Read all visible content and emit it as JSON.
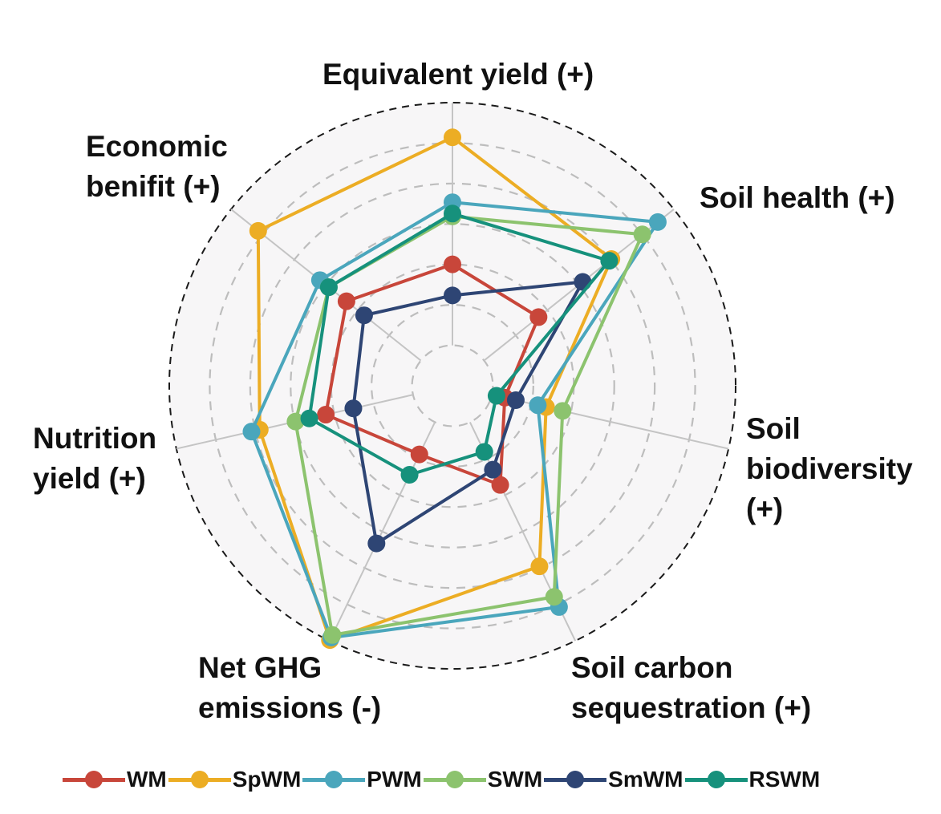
{
  "chart_data": {
    "type": "radar",
    "axes": [
      "Equivalent yield (+)",
      "Soil health (+)",
      "Soil\nbiodiversity\n(+)",
      "Soil carbon\nsequestration (+)",
      "Net GHG\nemissions (-)",
      "Nutrition\nyield (+)",
      "Economic\nbenifit (+)"
    ],
    "range": [
      0,
      1
    ],
    "rings": 7,
    "grid": true,
    "legend": "bottom",
    "series": [
      {
        "name": "WM",
        "color": "#c8463a",
        "values": [
          0.43,
          0.39,
          0.19,
          0.39,
          0.27,
          0.46,
          0.48
        ]
      },
      {
        "name": "SpWM",
        "color": "#ecad24",
        "values": [
          0.88,
          0.72,
          0.34,
          0.71,
          1.0,
          0.7,
          0.88
        ]
      },
      {
        "name": "PWM",
        "color": "#4aa6bc",
        "values": [
          0.65,
          0.93,
          0.31,
          0.87,
          0.99,
          0.73,
          0.6
        ]
      },
      {
        "name": "SWM",
        "color": "#8cc36e",
        "values": [
          0.6,
          0.86,
          0.4,
          0.83,
          0.98,
          0.57,
          0.56
        ]
      },
      {
        "name": "SmWM",
        "color": "#2e4574",
        "values": [
          0.32,
          0.59,
          0.23,
          0.33,
          0.62,
          0.36,
          0.4
        ]
      },
      {
        "name": "RSWM",
        "color": "#16917c",
        "values": [
          0.61,
          0.71,
          0.16,
          0.26,
          0.35,
          0.52,
          0.56
        ]
      }
    ]
  }
}
